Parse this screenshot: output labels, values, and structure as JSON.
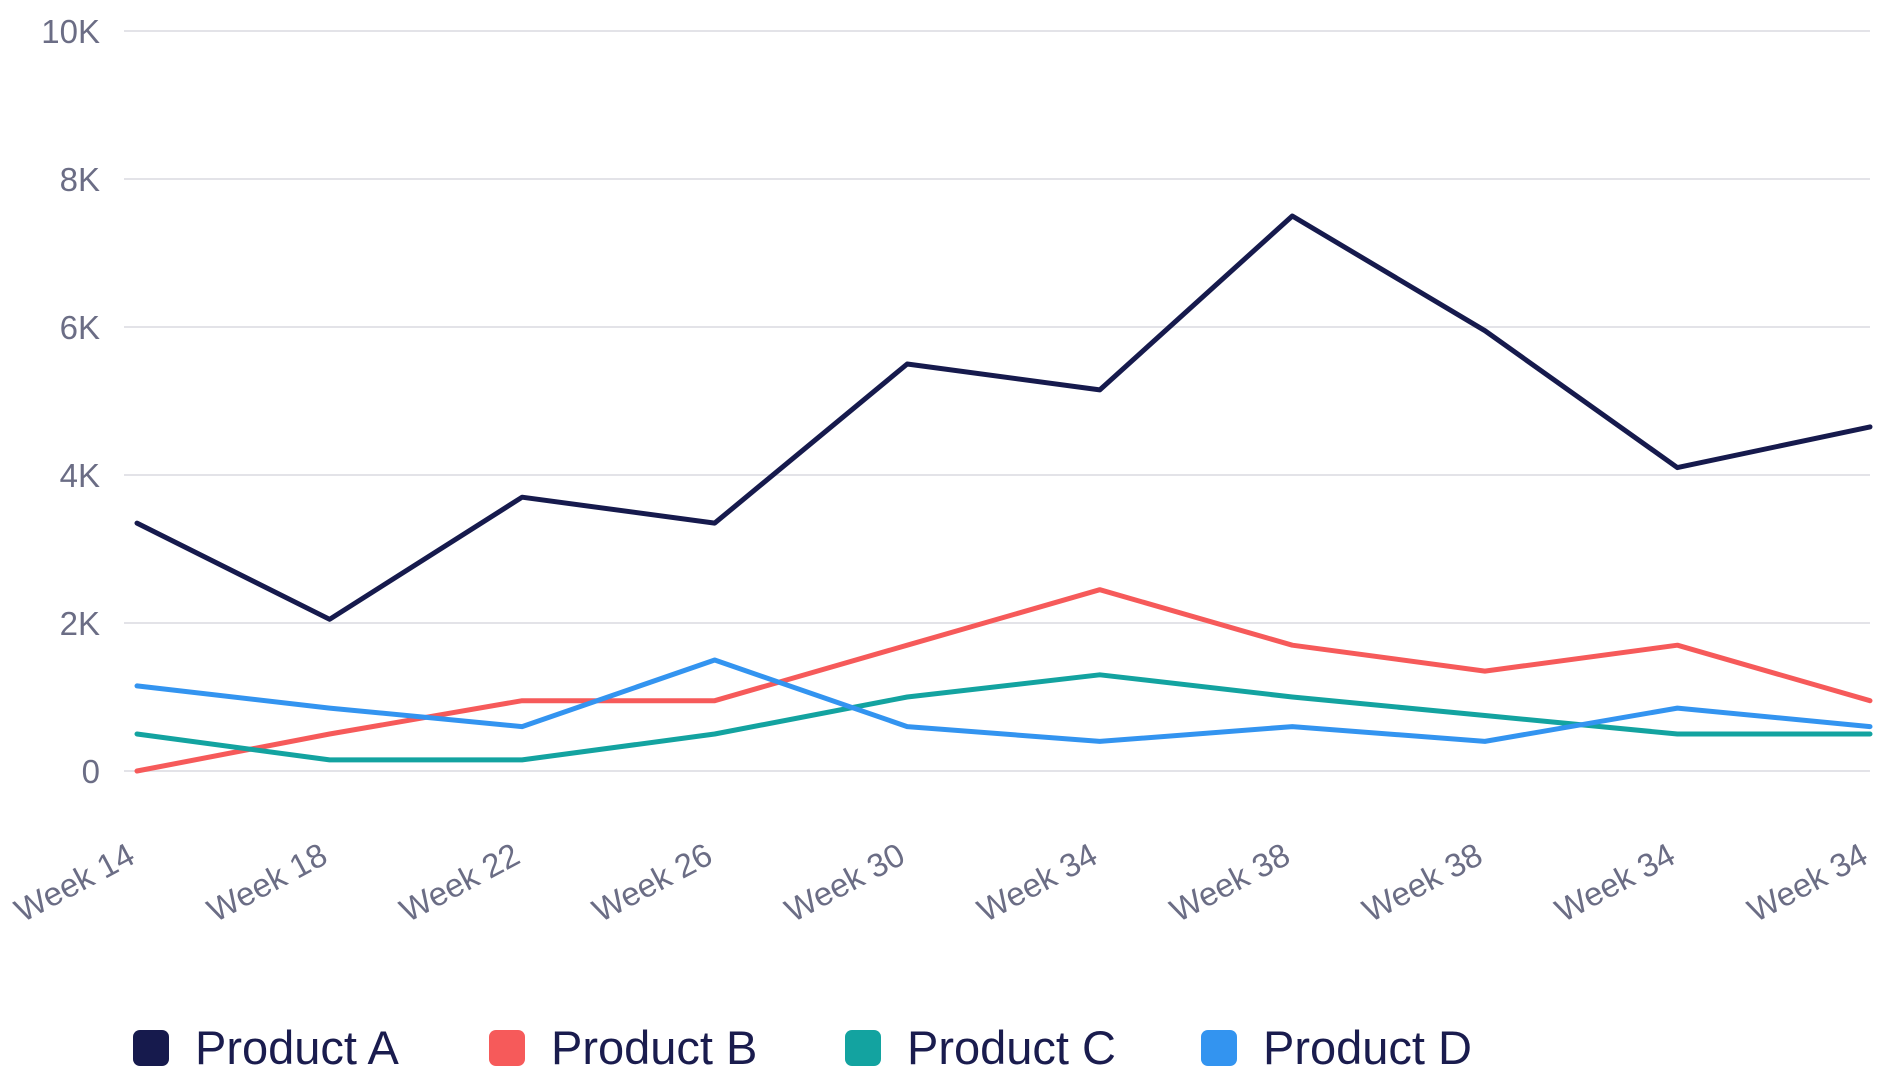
{
  "chart_data": {
    "type": "line",
    "title": "",
    "xlabel": "",
    "ylabel": "",
    "ylim": [
      0,
      10000
    ],
    "y_ticks": [
      {
        "value": 0,
        "label": "0"
      },
      {
        "value": 2000,
        "label": "2K"
      },
      {
        "value": 4000,
        "label": "4K"
      },
      {
        "value": 6000,
        "label": "6K"
      },
      {
        "value": 8000,
        "label": "8K"
      },
      {
        "value": 10000,
        "label": "10K"
      }
    ],
    "categories": [
      "Week 14",
      "Week 18",
      "Week 22",
      "Week  26",
      "Week 30",
      "Week 34",
      "Week 38",
      "Week 38",
      "Week 34",
      "Week 34"
    ],
    "grid": true,
    "legend_position": "bottom-left",
    "series": [
      {
        "name": "Product A",
        "color": "#161a4d",
        "values": [
          3350,
          2050,
          3700,
          3350,
          5500,
          5150,
          7500,
          5950,
          4100,
          4650
        ]
      },
      {
        "name": "Product B",
        "color": "#f65a5a",
        "values": [
          0,
          500,
          950,
          950,
          1700,
          2450,
          1700,
          1350,
          1700,
          950
        ]
      },
      {
        "name": "Product C",
        "color": "#13a3a0",
        "values": [
          500,
          150,
          150,
          500,
          1000,
          1300,
          1000,
          750,
          500,
          500
        ]
      },
      {
        "name": "Product D",
        "color": "#3394f0",
        "values": [
          1150,
          850,
          600,
          1500,
          600,
          400,
          600,
          400,
          850,
          600
        ]
      }
    ]
  }
}
